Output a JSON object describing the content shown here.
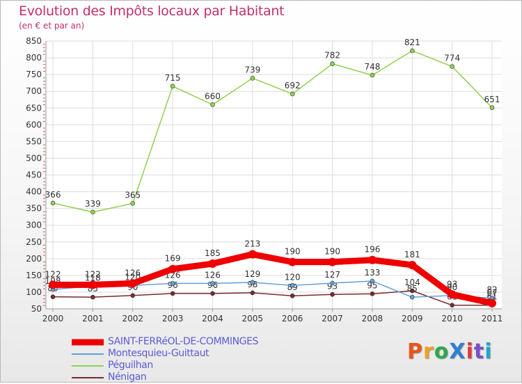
{
  "title": "Evolution des Impôts locaux par Habitant",
  "subtitle": "(en € et par an)",
  "logo": {
    "text": "ProXiti",
    "colors": [
      "#e8561c",
      "#f0a01e",
      "#2fa84a",
      "#2f7fd1",
      "#e03a3a",
      "#7a4fc4",
      "#22a6c9"
    ]
  },
  "legend": [
    "SAINT-FERRéOL-DE-COMMINGES",
    "Montesquieu-Guittaut",
    "Péguilhan",
    "Nénigan"
  ],
  "chart_data": {
    "type": "line",
    "title": "Evolution des Impôts locaux par Habitant",
    "subtitle": "(en € et par an)",
    "xlabel": "",
    "ylabel": "",
    "categories": [
      "2000",
      "2001",
      "2002",
      "2003",
      "2004",
      "2005",
      "2006",
      "2007",
      "2008",
      "2009",
      "2010",
      "2011"
    ],
    "ylim": [
      50,
      850
    ],
    "yticks": [
      50,
      100,
      150,
      200,
      250,
      300,
      350,
      400,
      450,
      500,
      550,
      600,
      650,
      700,
      750,
      800,
      850
    ],
    "legend_position": "bottom-left",
    "series": [
      {
        "name": "Péguilhan",
        "color": "#8fd14f",
        "values": [
          366,
          339,
          365,
          715,
          660,
          739,
          692,
          782,
          748,
          821,
          774,
          651
        ],
        "labels": [
          "366",
          "339",
          "365",
          "715",
          "660",
          "739",
          "692",
          "782",
          "748",
          "821",
          "774",
          "651"
        ]
      },
      {
        "name": "Nénigan",
        "color": "#7a2a2a",
        "values": [
          86,
          85,
          90,
          96,
          96,
          98,
          89,
          93,
          95,
          104,
          61,
          61
        ],
        "labels": [
          "86",
          "85",
          "90",
          "96",
          "96",
          "98",
          "89",
          "93",
          "95",
          "104",
          "61",
          "61"
        ]
      },
      {
        "name": "Montesquieu-Guittaut",
        "color": "#5fa0d8",
        "values": [
          108,
          118,
          120,
          126,
          126,
          129,
          120,
          127,
          133,
          85,
          90,
          82
        ],
        "labels": [
          "108",
          "118",
          "120",
          "126",
          "126",
          "129",
          "120",
          "127",
          "133",
          "85",
          "90",
          "82"
        ]
      },
      {
        "name": "SAINT-FERRéOL-DE-COMMINGES",
        "color": "#ee0000",
        "values": [
          122,
          122,
          126,
          169,
          185,
          213,
          190,
          190,
          196,
          181,
          93,
          67
        ],
        "labels": [
          "122",
          "122",
          "126",
          "169",
          "185",
          "213",
          "190",
          "190",
          "196",
          "181",
          "93",
          "67"
        ]
      }
    ]
  }
}
